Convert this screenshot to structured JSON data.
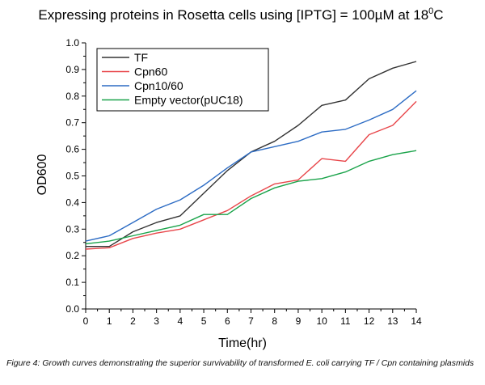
{
  "chart_data": {
    "type": "line",
    "title_prefix": "Expressing proteins in Rosetta cells using [IPTG] = 100",
    "title_unit": "µM",
    "title_mid": " at 18",
    "title_sup": "0",
    "title_end": "C",
    "xlabel": "Time(hr)",
    "ylabel": "OD600",
    "xlim": [
      0,
      14
    ],
    "ylim": [
      0.0,
      1.0
    ],
    "x_ticks": [
      "0",
      "1",
      "2",
      "3",
      "4",
      "5",
      "6",
      "7",
      "8",
      "9",
      "10",
      "11",
      "12",
      "13",
      "14"
    ],
    "y_ticks": [
      "0.0",
      "0.1",
      "0.2",
      "0.3",
      "0.4",
      "0.5",
      "0.6",
      "0.7",
      "0.8",
      "0.9",
      "1.0"
    ],
    "legend_position": "top-left",
    "x": [
      0,
      1,
      2,
      3,
      4,
      5,
      6,
      7,
      8,
      9,
      10,
      11,
      12,
      13,
      14
    ],
    "series": [
      {
        "name": "TF",
        "color": "#333333",
        "values": [
          0.235,
          0.235,
          0.29,
          0.325,
          0.35,
          0.435,
          0.52,
          0.59,
          0.63,
          0.69,
          0.765,
          0.785,
          0.865,
          0.905,
          0.93
        ]
      },
      {
        "name": "Cpn60",
        "color": "#e8464a",
        "values": [
          0.225,
          0.23,
          0.265,
          0.285,
          0.3,
          0.335,
          0.37,
          0.425,
          0.47,
          0.485,
          0.565,
          0.555,
          0.655,
          0.69,
          0.78
        ]
      },
      {
        "name": "Cpn10/60",
        "color": "#2d6cc4",
        "values": [
          0.255,
          0.275,
          0.325,
          0.375,
          0.41,
          0.465,
          0.53,
          0.59,
          0.61,
          0.63,
          0.665,
          0.675,
          0.71,
          0.75,
          0.82
        ]
      },
      {
        "name": "Empty vector(pUC18)",
        "color": "#1aa34a",
        "values": [
          0.245,
          0.255,
          0.275,
          0.295,
          0.315,
          0.355,
          0.355,
          0.415,
          0.455,
          0.48,
          0.49,
          0.515,
          0.555,
          0.58,
          0.595
        ]
      }
    ]
  },
  "caption": "Figure 4: Growth curves demonstrating the superior survivability of transformed E. coli carrying TF / Cpn containing plasmids"
}
